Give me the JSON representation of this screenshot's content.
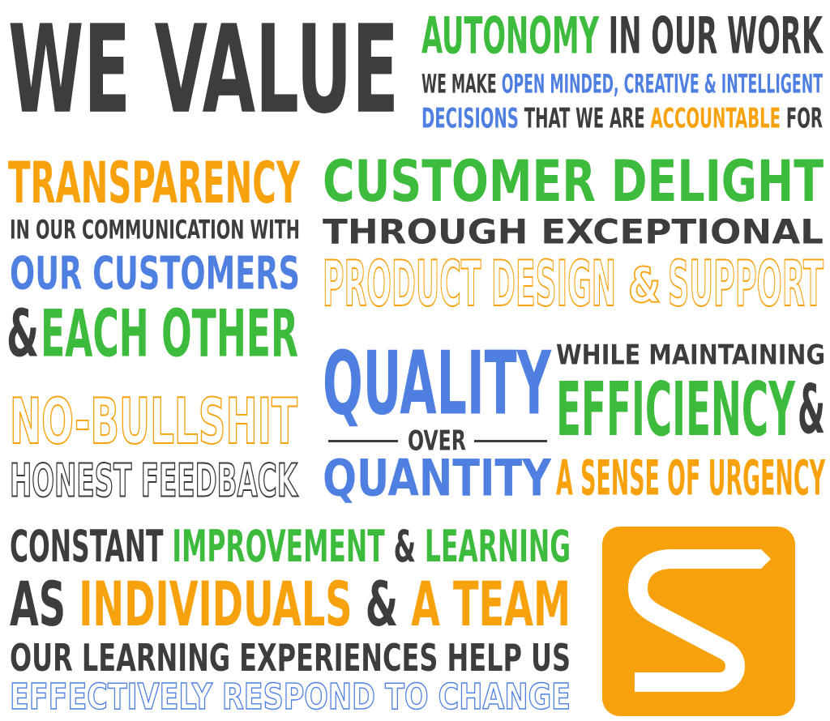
{
  "header": {
    "we_value": "WE VALUE",
    "autonomy": {
      "w1": "AUTONOMY",
      "w2": "IN OUR WORK"
    },
    "decisions_1": {
      "w1": "WE MAKE",
      "w2": "OPEN MINDED, CREATIVE & INTELLIGENT"
    },
    "decisions_2": {
      "w1": "DECISIONS",
      "w2": "THAT WE ARE",
      "w3": "ACCOUNTABLE",
      "w4": "FOR"
    }
  },
  "transparency": {
    "title": "TRANSPARENCY",
    "line2": "IN OUR COMMUNICATION WITH",
    "line3": "OUR CUSTOMERS",
    "amp": "&",
    "line4": "EACH OTHER"
  },
  "customer": {
    "title": "CUSTOMER DELIGHT",
    "line2": "THROUGH EXCEPTIONAL",
    "line3a": "PRODUCT DESIGN",
    "amp": "&",
    "line3b": "SUPPORT"
  },
  "feedback": {
    "line1": "NO-BULLSHIT",
    "line2": "HONEST FEEDBACK"
  },
  "quality": {
    "quality": "QUALITY",
    "over": "OVER",
    "quantity": "QUANTITY",
    "while": "WHILE MAINTAINING",
    "efficiency": "EFFICIENCY",
    "amp": "&",
    "urgency": "A SENSE OF URGENCY"
  },
  "improvement": {
    "l1": {
      "w1": "CONSTANT",
      "w2": "IMPROVEMENT",
      "w3": "&",
      "w4": "LEARNING"
    },
    "l2": {
      "w1": "AS",
      "w2": "INDIVIDUALS",
      "w3": "&",
      "w4": "A TEAM"
    },
    "l3": "OUR LEARNING EXPERIENCES HELP US",
    "l4": "EFFECTIVELY RESPOND TO CHANGE"
  },
  "logo": {
    "icon": "s-logo-icon",
    "background": "#f7a10c"
  },
  "colors": {
    "dark": "#3d3d3d",
    "green": "#3dbb3d",
    "blue": "#4f7fe0",
    "orange": "#f7a10c"
  }
}
